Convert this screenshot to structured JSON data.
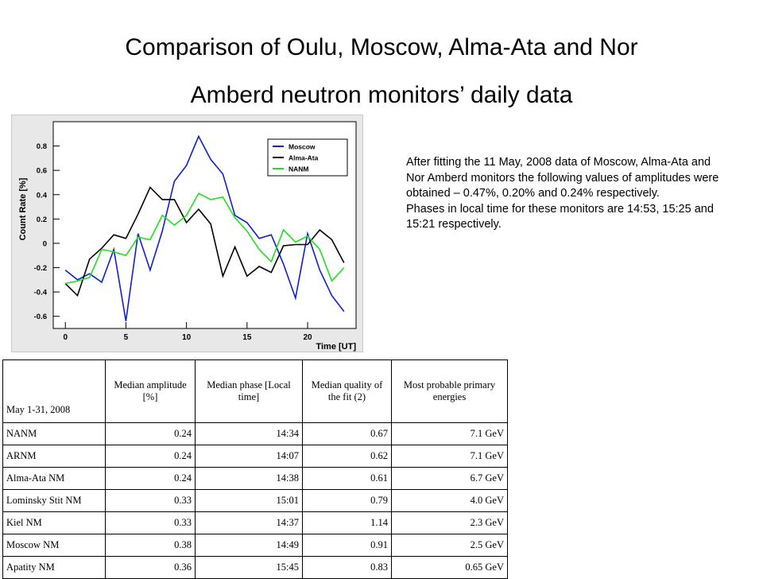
{
  "title_line1": "Comparison of Oulu, Moscow, Alma-Ata and Nor",
  "title_line2": "Amberd neutron monitors’ daily data",
  "description": [
    "After fitting the 11 May, 2008 data of Moscow, Alma-Ata and",
    "Nor Amberd monitors the following values of amplitudes were obtained – 0.47%, 0.20% and 0.24% respectively.",
    "Phases in local time for these monitors are 14:53, 15:25 and 15:21 respectively."
  ],
  "chart_data": {
    "type": "line",
    "xlabel": "Time [UT]",
    "ylabel": "Count Rate [%]",
    "xlim": [
      -1,
      24
    ],
    "ylim": [
      -0.7,
      1.0
    ],
    "x_ticks": [
      0,
      5,
      10,
      15,
      20
    ],
    "y_ticks": [
      -0.6,
      -0.4,
      -0.2,
      0,
      0.2,
      0.4,
      0.6,
      0.8
    ],
    "y_tick_labels": [
      "-0.6",
      "-0.4",
      "-0.2",
      "0",
      "0.2",
      "0.4",
      "0.6",
      "0.8"
    ],
    "legend_position": "top-right",
    "x": [
      0,
      1,
      2,
      3,
      4,
      5,
      6,
      7,
      8,
      9,
      10,
      11,
      12,
      13,
      14,
      15,
      16,
      17,
      18,
      19,
      20,
      21,
      22,
      23
    ],
    "series": [
      {
        "name": "Moscow",
        "color": "#1020d0",
        "values": [
          -0.22,
          -0.3,
          -0.25,
          -0.32,
          -0.05,
          -0.64,
          0.08,
          -0.22,
          0.1,
          0.51,
          0.64,
          0.88,
          0.69,
          0.57,
          0.23,
          0.17,
          0.04,
          0.07,
          -0.17,
          -0.45,
          0.08,
          -0.22,
          -0.43,
          -0.56
        ]
      },
      {
        "name": "Alma-Ata",
        "color": "#000000",
        "values": [
          -0.33,
          -0.43,
          -0.13,
          -0.04,
          0.07,
          0.04,
          0.24,
          0.46,
          0.36,
          0.36,
          0.17,
          0.28,
          0.16,
          -0.27,
          -0.03,
          -0.27,
          -0.19,
          -0.24,
          -0.02,
          -0.01,
          -0.01,
          0.11,
          0.03,
          -0.16
        ]
      },
      {
        "name": "NANM",
        "color": "#20e020",
        "values": [
          -0.33,
          -0.31,
          -0.28,
          -0.05,
          -0.07,
          -0.1,
          0.05,
          0.03,
          0.23,
          0.15,
          0.23,
          0.41,
          0.36,
          0.38,
          0.21,
          0.1,
          -0.05,
          -0.15,
          0.11,
          0.01,
          0.06,
          -0.05,
          -0.31,
          -0.2
        ]
      }
    ]
  },
  "table": {
    "headers": [
      "May 1-31, 2008",
      "Median amplitude [%]",
      "Median phase [Local time]",
      "Median quality of the fit (2)",
      "Most probable primary energies"
    ],
    "rows": [
      [
        "NANM",
        "0.24",
        "14:34",
        "0.67",
        "7.1 GeV"
      ],
      [
        "ARNM",
        "0.24",
        "14:07",
        "0.62",
        "7.1 GeV"
      ],
      [
        "Alma-Ata NM",
        "0.24",
        "14:38",
        "0.61",
        "6.7 GeV"
      ],
      [
        "Lominsky Stit NM",
        "0.33",
        "15:01",
        "0.79",
        "4.0 GeV"
      ],
      [
        "Kiel NM",
        "0.33",
        "14:37",
        "1.14",
        "2.3 GeV"
      ],
      [
        "Moscow NM",
        "0.38",
        "14:49",
        "0.91",
        "2.5 GeV"
      ],
      [
        "Apatity NM",
        "0.36",
        "15:45",
        "0.83",
        "0.65 GeV"
      ]
    ]
  }
}
